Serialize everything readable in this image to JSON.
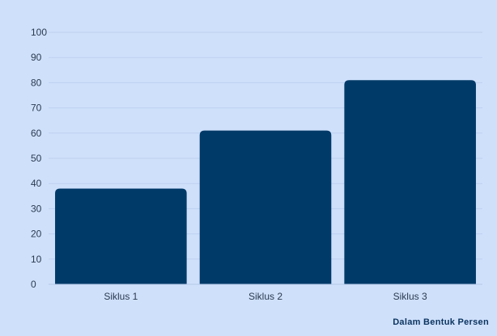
{
  "chart_data": {
    "type": "bar",
    "categories": [
      "Siklus 1",
      "Siklus 2",
      "Siklus 3"
    ],
    "values": [
      38,
      61,
      81
    ],
    "ylim": [
      0,
      100
    ],
    "yticks": [
      0,
      10,
      20,
      30,
      40,
      50,
      60,
      70,
      80,
      90,
      100
    ],
    "grid": true,
    "bar_color": "#003a68",
    "background_color": "#cfe0fb",
    "note": "Dalam Bentuk Persen"
  }
}
